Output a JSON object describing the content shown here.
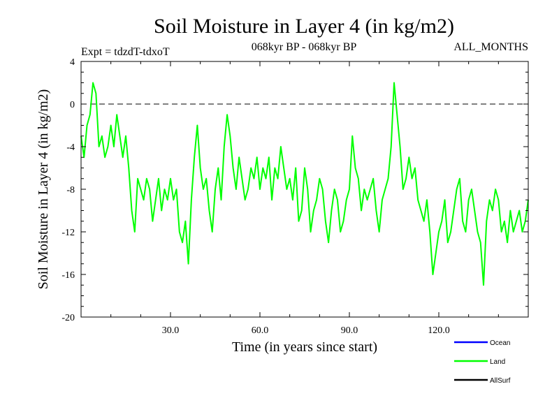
{
  "chart_data": {
    "type": "line",
    "title": "Soil Moisture in Layer 4 (in kg/m2)",
    "subtitle_left": "Expt = tdzdT-tdxoT",
    "subtitle_center": "068kyr BP - 068kyr BP",
    "subtitle_right": "ALL_MONTHS",
    "xlabel": "Time (in years since start)",
    "ylabel": "Soil Moisture in Layer 4 (in kg/m2)",
    "xlim": [
      0,
      150
    ],
    "ylim": [
      -20,
      4
    ],
    "x_ticks": [
      30,
      60,
      90,
      120
    ],
    "x_tick_labels": [
      "30.0",
      "60.0",
      "90.0",
      "120.0"
    ],
    "y_ticks": [
      4,
      0,
      -4,
      -8,
      -12,
      -16,
      -20
    ],
    "y_tick_labels": [
      "4",
      "0",
      "-4",
      "-8",
      "-12",
      "-16",
      "-20"
    ],
    "reference_line": {
      "y": 0,
      "style": "dashed"
    },
    "legend": [
      {
        "name": "Ocean",
        "color": "#0000ff"
      },
      {
        "name": "Land",
        "color": "#00ff00"
      },
      {
        "name": "AllSurf",
        "color": "#000000"
      }
    ],
    "series": [
      {
        "name": "Land",
        "color": "#00ff00",
        "x": [
          0,
          1,
          2,
          3,
          4,
          5,
          6,
          7,
          8,
          9,
          10,
          11,
          12,
          13,
          14,
          15,
          16,
          17,
          18,
          19,
          20,
          21,
          22,
          23,
          24,
          25,
          26,
          27,
          28,
          29,
          30,
          31,
          32,
          33,
          34,
          35,
          36,
          37,
          38,
          39,
          40,
          41,
          42,
          43,
          44,
          45,
          46,
          47,
          48,
          49,
          50,
          51,
          52,
          53,
          54,
          55,
          56,
          57,
          58,
          59,
          60,
          61,
          62,
          63,
          64,
          65,
          66,
          67,
          68,
          69,
          70,
          71,
          72,
          73,
          74,
          75,
          76,
          77,
          78,
          79,
          80,
          81,
          82,
          83,
          84,
          85,
          86,
          87,
          88,
          89,
          90,
          91,
          92,
          93,
          94,
          95,
          96,
          97,
          98,
          99,
          100,
          101,
          102,
          103,
          104,
          105,
          106,
          107,
          108,
          109,
          110,
          111,
          112,
          113,
          114,
          115,
          116,
          117,
          118,
          119,
          120,
          121,
          122,
          123,
          124,
          125,
          126,
          127,
          128,
          129,
          130,
          131,
          132,
          133,
          134,
          135,
          136,
          137,
          138,
          139,
          140,
          141,
          142,
          143,
          144,
          145,
          146,
          147,
          148,
          149,
          150
        ],
        "values": [
          -3,
          -5,
          -2,
          -1,
          2,
          1,
          -4,
          -3,
          -5,
          -4,
          -2,
          -4,
          -1,
          -3,
          -5,
          -3,
          -6,
          -10,
          -12,
          -7,
          -8,
          -9,
          -7,
          -8,
          -11,
          -9,
          -7,
          -10,
          -8,
          -9,
          -7,
          -9,
          -8,
          -12,
          -13,
          -11,
          -15,
          -9,
          -5,
          -2,
          -6,
          -8,
          -7,
          -10,
          -12,
          -8,
          -6,
          -9,
          -4,
          -1,
          -3,
          -6,
          -8,
          -5,
          -7,
          -9,
          -8,
          -6,
          -7,
          -5,
          -8,
          -6,
          -7,
          -5,
          -9,
          -6,
          -7,
          -4,
          -6,
          -8,
          -7,
          -9,
          -6,
          -11,
          -10,
          -6,
          -8,
          -12,
          -10,
          -9,
          -7,
          -8,
          -11,
          -13,
          -10,
          -8,
          -9,
          -12,
          -11,
          -9,
          -8,
          -3,
          -6,
          -7,
          -10,
          -8,
          -9,
          -8,
          -7,
          -10,
          -12,
          -9,
          -8,
          -7,
          -4,
          2,
          -1,
          -4,
          -8,
          -7,
          -5,
          -7,
          -6,
          -9,
          -10,
          -11,
          -9,
          -12,
          -16,
          -14,
          -12,
          -11,
          -9,
          -13,
          -12,
          -10,
          -8,
          -7,
          -11,
          -12,
          -9,
          -8,
          -10,
          -12,
          -13,
          -17,
          -11,
          -9,
          -10,
          -8,
          -9,
          -12,
          -11,
          -13,
          -10,
          -12,
          -11,
          -10,
          -12,
          -11,
          -9
        ]
      }
    ]
  }
}
